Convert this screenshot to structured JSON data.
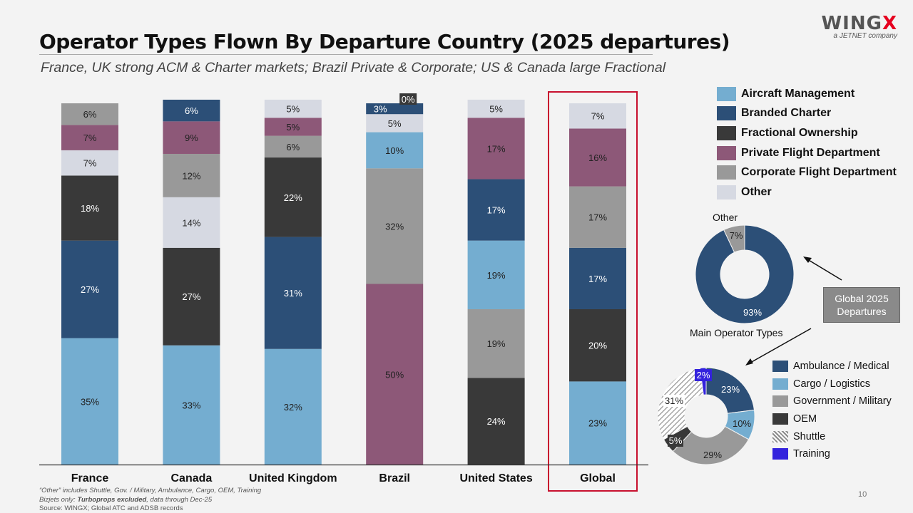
{
  "header": {
    "title": "Operator Types Flown By Departure Country (2025 departures)",
    "subtitle": "France, UK strong ACM & Charter markets; Brazil Private & Corporate; US & Canada large Fractional",
    "logo_main": "WING",
    "logo_accent": "X",
    "logo_sub": "a JETNET company"
  },
  "colors": {
    "Aircraft Management": "#74add0",
    "Branded Charter": "#2c4f77",
    "Fractional Ownership": "#393939",
    "Private Flight Department": "#8d5878",
    "Corporate Flight Department": "#999999",
    "Other": "#d6d9e2",
    "Ambulance / Medical": "#2c4f77",
    "Cargo / Logistics": "#74add0",
    "Government / Military": "#999999",
    "OEM": "#393939",
    "Shuttle": "#bdbdbd",
    "Training": "#3322dd",
    "highlight": "#c8102e"
  },
  "chart_data": [
    {
      "type": "bar",
      "stacked": true,
      "categories": [
        "France",
        "Canada",
        "United Kingdom",
        "Brazil",
        "United States",
        "Global"
      ],
      "series": [
        {
          "name": "Aircraft Management",
          "values": [
            35,
            33,
            32,
            10,
            19,
            23
          ]
        },
        {
          "name": "Branded Charter",
          "values": [
            27,
            6,
            31,
            3,
            17,
            17
          ]
        },
        {
          "name": "Fractional Ownership",
          "values": [
            18,
            27,
            22,
            0,
            24,
            20
          ]
        },
        {
          "name": "Private Flight Department",
          "values": [
            7,
            9,
            5,
            50,
            17,
            16
          ]
        },
        {
          "name": "Corporate Flight Department",
          "values": [
            6,
            12,
            6,
            32,
            19,
            17
          ]
        },
        {
          "name": "Other",
          "values": [
            7,
            14,
            5,
            5,
            5,
            7
          ]
        }
      ],
      "stack_order": [
        [
          "Aircraft Management",
          "Branded Charter",
          "Fractional Ownership",
          "Other",
          "Private Flight Department",
          "Corporate Flight Department"
        ],
        [
          "Aircraft Management",
          "Fractional Ownership",
          "Other",
          "Corporate Flight Department",
          "Private Flight Department",
          "Branded Charter"
        ],
        [
          "Aircraft Management",
          "Branded Charter",
          "Fractional Ownership",
          "Corporate Flight Department",
          "Private Flight Department",
          "Other"
        ],
        [
          "Private Flight Department",
          "Corporate Flight Department",
          "Aircraft Management",
          "Other",
          "Branded Charter",
          "Fractional Ownership"
        ],
        [
          "Fractional Ownership",
          "Corporate Flight Department",
          "Aircraft Management",
          "Branded Charter",
          "Private Flight Department",
          "Other"
        ],
        [
          "Aircraft Management",
          "Fractional Ownership",
          "Branded Charter",
          "Corporate Flight Department",
          "Private Flight Department",
          "Other"
        ]
      ],
      "ylim": [
        0,
        100
      ],
      "highlighted_category": "Global",
      "legend_position": "right"
    },
    {
      "type": "pie",
      "donut": true,
      "labels": [
        "Main Operator Types",
        "Other"
      ],
      "values": [
        93,
        7
      ],
      "slice_labels": [
        "93%",
        "7%"
      ],
      "title_top": "Other",
      "title_bottom": "Main Operator Types"
    },
    {
      "type": "pie",
      "donut": true,
      "labels": [
        "Ambulance / Medical",
        "Cargo / Logistics",
        "Government / Military",
        "OEM",
        "Shuttle",
        "Training"
      ],
      "values": [
        23,
        10,
        29,
        5,
        31,
        2
      ],
      "slice_labels": [
        "23%",
        "10%",
        "29%",
        "5%",
        "31%",
        "2%"
      ],
      "legend_position": "right"
    }
  ],
  "callout": {
    "line1": "Global 2025",
    "line2": "Departures"
  },
  "footnotes": {
    "line1": "“Other” includes Shuttle, Gov. / Military, Ambulance, Cargo, OEM, Training",
    "line2_prefix": "Bizjets only: ",
    "line2_bold": "Turboprops excluded",
    "line2_suffix": ", data through Dec-25",
    "source": "Source: WINGX; Global ATC and ADSB records"
  },
  "page_number": "10"
}
